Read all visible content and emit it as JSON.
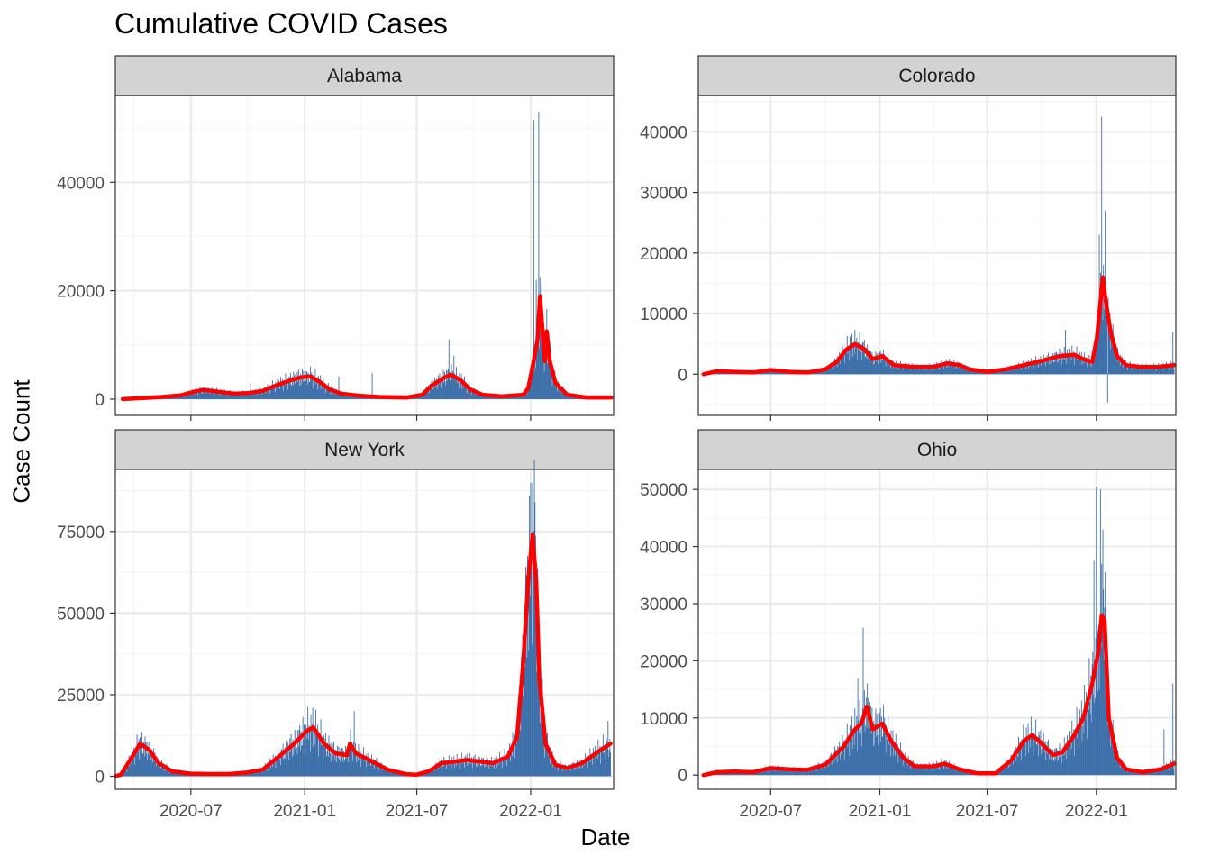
{
  "title": "Cumulative COVID Cases",
  "colors": {
    "bar": "#3c6fa9",
    "smooth": "#ff0000",
    "strip_fill": "#d3d3d3",
    "strip_border": "#333333",
    "grid_major": "#ebebeb",
    "grid_minor": "#f5f5f5",
    "panel_border": "#333333"
  },
  "chart_data": {
    "type": "bar",
    "layout": "facet-grid-2x2",
    "title": "Cumulative COVID Cases",
    "xlabel": "Date",
    "ylabel": "Case Count",
    "x_ticks": [
      "2020-07",
      "2021-01",
      "2021-07",
      "2022-01"
    ],
    "xlim": [
      "2020-03-01",
      "2022-05-15"
    ],
    "grid": true,
    "legend": "none",
    "series_types": {
      "bars": "daily cases (bar)",
      "line": "7-day smoothed (line)"
    },
    "facets": [
      {
        "name": "Alabama",
        "ylim": [
          -3000,
          56000
        ],
        "y_ticks": [
          0,
          20000,
          40000
        ],
        "smooth": [
          [
            "2020-03-13",
            0
          ],
          [
            "2020-04-15",
            200
          ],
          [
            "2020-05-15",
            400
          ],
          [
            "2020-06-15",
            700
          ],
          [
            "2020-07-01",
            1200
          ],
          [
            "2020-07-20",
            1700
          ],
          [
            "2020-08-05",
            1500
          ],
          [
            "2020-08-25",
            1200
          ],
          [
            "2020-09-10",
            1000
          ],
          [
            "2020-10-01",
            1100
          ],
          [
            "2020-10-25",
            1500
          ],
          [
            "2020-11-15",
            2500
          ],
          [
            "2020-12-10",
            3500
          ],
          [
            "2020-12-25",
            4000
          ],
          [
            "2021-01-10",
            4200
          ],
          [
            "2021-01-25",
            3200
          ],
          [
            "2021-02-10",
            1800
          ],
          [
            "2021-03-01",
            1000
          ],
          [
            "2021-04-01",
            600
          ],
          [
            "2021-05-01",
            400
          ],
          [
            "2021-06-15",
            300
          ],
          [
            "2021-07-10",
            800
          ],
          [
            "2021-07-25",
            2500
          ],
          [
            "2021-08-15",
            4000
          ],
          [
            "2021-08-25",
            4500
          ],
          [
            "2021-09-10",
            3500
          ],
          [
            "2021-09-25",
            1800
          ],
          [
            "2021-10-15",
            800
          ],
          [
            "2021-11-15",
            500
          ],
          [
            "2021-12-20",
            800
          ],
          [
            "2021-12-28",
            2000
          ],
          [
            "2022-01-05",
            6500
          ],
          [
            "2022-01-12",
            11000
          ],
          [
            "2022-01-16",
            19000
          ],
          [
            "2022-01-20",
            13000
          ],
          [
            "2022-01-24",
            7000
          ],
          [
            "2022-01-27",
            12500
          ],
          [
            "2022-02-01",
            7000
          ],
          [
            "2022-02-10",
            3000
          ],
          [
            "2022-03-01",
            800
          ],
          [
            "2022-04-01",
            300
          ],
          [
            "2022-05-11",
            300
          ]
        ],
        "spikes": [
          [
            "2022-01-06",
            51500
          ],
          [
            "2022-01-14",
            53000
          ],
          [
            "2022-01-10",
            22000
          ],
          [
            "2021-08-22",
            11000
          ],
          [
            "2021-08-30",
            8000
          ],
          [
            "2021-02-25",
            4200
          ],
          [
            "2021-04-20",
            4800
          ],
          [
            "2021-01-05",
            5000
          ],
          [
            "2020-11-20",
            3500
          ],
          [
            "2020-10-05",
            3000
          ]
        ]
      },
      {
        "name": "Colorado",
        "ylim": [
          -6800,
          46000
        ],
        "y_ticks": [
          0,
          10000,
          20000,
          30000,
          40000
        ],
        "smooth": [
          [
            "2020-03-10",
            0
          ],
          [
            "2020-04-01",
            500
          ],
          [
            "2020-05-01",
            400
          ],
          [
            "2020-06-01",
            300
          ],
          [
            "2020-07-01",
            700
          ],
          [
            "2020-08-01",
            400
          ],
          [
            "2020-09-01",
            300
          ],
          [
            "2020-10-01",
            800
          ],
          [
            "2020-10-20",
            2000
          ],
          [
            "2020-11-05",
            4000
          ],
          [
            "2020-11-20",
            5000
          ],
          [
            "2020-12-05",
            4200
          ],
          [
            "2020-12-20",
            2500
          ],
          [
            "2021-01-05",
            3000
          ],
          [
            "2021-01-25",
            1500
          ],
          [
            "2021-03-01",
            1200
          ],
          [
            "2021-04-01",
            1200
          ],
          [
            "2021-04-25",
            1800
          ],
          [
            "2021-05-15",
            1500
          ],
          [
            "2021-06-01",
            800
          ],
          [
            "2021-07-01",
            400
          ],
          [
            "2021-08-01",
            800
          ],
          [
            "2021-09-01",
            1500
          ],
          [
            "2021-10-01",
            2200
          ],
          [
            "2021-11-01",
            3000
          ],
          [
            "2021-11-25",
            3200
          ],
          [
            "2021-12-10",
            2500
          ],
          [
            "2021-12-25",
            2000
          ],
          [
            "2022-01-02",
            6000
          ],
          [
            "2022-01-08",
            12000
          ],
          [
            "2022-01-12",
            16000
          ],
          [
            "2022-01-17",
            12000
          ],
          [
            "2022-01-25",
            7000
          ],
          [
            "2022-02-05",
            3000
          ],
          [
            "2022-02-20",
            1500
          ],
          [
            "2022-03-15",
            1200
          ],
          [
            "2022-04-15",
            1200
          ],
          [
            "2022-05-12",
            1500
          ]
        ],
        "spikes": [
          [
            "2022-01-10",
            42500
          ],
          [
            "2022-01-16",
            27000
          ],
          [
            "2022-01-06",
            23000
          ],
          [
            "2022-01-20",
            -4700
          ],
          [
            "2021-11-10",
            7300
          ],
          [
            "2022-05-10",
            7000
          ],
          [
            "2020-11-12",
            6200
          ]
        ]
      },
      {
        "name": "New York",
        "ylim": [
          -4000,
          94000
        ],
        "y_ticks": [
          0,
          25000,
          50000,
          75000
        ],
        "smooth": [
          [
            "2020-03-01",
            0
          ],
          [
            "2020-03-10",
            500
          ],
          [
            "2020-03-25",
            5000
          ],
          [
            "2020-04-10",
            10000
          ],
          [
            "2020-04-25",
            8000
          ],
          [
            "2020-05-10",
            4000
          ],
          [
            "2020-06-01",
            1500
          ],
          [
            "2020-07-01",
            800
          ],
          [
            "2020-08-01",
            700
          ],
          [
            "2020-09-01",
            700
          ],
          [
            "2020-10-01",
            1200
          ],
          [
            "2020-10-25",
            2000
          ],
          [
            "2020-11-20",
            6000
          ],
          [
            "2020-12-15",
            10000
          ],
          [
            "2021-01-05",
            14000
          ],
          [
            "2021-01-15",
            15000
          ],
          [
            "2021-02-01",
            10000
          ],
          [
            "2021-02-20",
            7000
          ],
          [
            "2021-03-10",
            6500
          ],
          [
            "2021-03-15",
            10000
          ],
          [
            "2021-03-25",
            7000
          ],
          [
            "2021-04-15",
            5000
          ],
          [
            "2021-05-15",
            2000
          ],
          [
            "2021-06-15",
            600
          ],
          [
            "2021-07-01",
            500
          ],
          [
            "2021-07-20",
            1500
          ],
          [
            "2021-08-10",
            4000
          ],
          [
            "2021-09-01",
            4500
          ],
          [
            "2021-09-20",
            5000
          ],
          [
            "2021-10-10",
            4500
          ],
          [
            "2021-11-01",
            4000
          ],
          [
            "2021-11-25",
            6000
          ],
          [
            "2021-12-10",
            12000
          ],
          [
            "2021-12-20",
            35000
          ],
          [
            "2021-12-28",
            60000
          ],
          [
            "2022-01-04",
            74000
          ],
          [
            "2022-01-10",
            60000
          ],
          [
            "2022-01-15",
            30000
          ],
          [
            "2022-01-25",
            10000
          ],
          [
            "2022-02-10",
            3500
          ],
          [
            "2022-03-01",
            2500
          ],
          [
            "2022-03-25",
            4000
          ],
          [
            "2022-04-20",
            7500
          ],
          [
            "2022-05-10",
            10000
          ]
        ],
        "spikes": [
          [
            "2021-12-30",
            86000
          ],
          [
            "2022-01-04",
            90000
          ],
          [
            "2022-01-08",
            84000
          ],
          [
            "2021-03-22",
            20000
          ],
          [
            "2020-04-08",
            11500
          ],
          [
            "2022-05-06",
            17000
          ]
        ]
      },
      {
        "name": "Ohio",
        "ylim": [
          -2500,
          53500
        ],
        "y_ticks": [
          0,
          10000,
          20000,
          30000,
          40000,
          50000
        ],
        "smooth": [
          [
            "2020-03-10",
            0
          ],
          [
            "2020-04-01",
            500
          ],
          [
            "2020-05-01",
            600
          ],
          [
            "2020-06-01",
            500
          ],
          [
            "2020-07-01",
            1200
          ],
          [
            "2020-08-01",
            1000
          ],
          [
            "2020-09-01",
            900
          ],
          [
            "2020-10-01",
            1800
          ],
          [
            "2020-11-01",
            5000
          ],
          [
            "2020-11-20",
            8000
          ],
          [
            "2020-12-01",
            9000
          ],
          [
            "2020-12-10",
            12000
          ],
          [
            "2020-12-20",
            8000
          ],
          [
            "2021-01-05",
            9000
          ],
          [
            "2021-01-20",
            6000
          ],
          [
            "2021-02-10",
            3000
          ],
          [
            "2021-03-01",
            1500
          ],
          [
            "2021-04-01",
            1500
          ],
          [
            "2021-04-20",
            2000
          ],
          [
            "2021-05-15",
            1000
          ],
          [
            "2021-06-15",
            300
          ],
          [
            "2021-07-15",
            300
          ],
          [
            "2021-08-10",
            2500
          ],
          [
            "2021-09-01",
            6000
          ],
          [
            "2021-09-15",
            7000
          ],
          [
            "2021-10-01",
            5500
          ],
          [
            "2021-10-20",
            3500
          ],
          [
            "2021-11-05",
            4000
          ],
          [
            "2021-11-25",
            7000
          ],
          [
            "2021-12-10",
            10000
          ],
          [
            "2021-12-25",
            16000
          ],
          [
            "2022-01-05",
            22000
          ],
          [
            "2022-01-10",
            28000
          ],
          [
            "2022-01-15",
            27000
          ],
          [
            "2022-01-22",
            10000
          ],
          [
            "2022-02-05",
            3000
          ],
          [
            "2022-02-20",
            1000
          ],
          [
            "2022-03-20",
            500
          ],
          [
            "2022-04-20",
            1000
          ],
          [
            "2022-05-12",
            2000
          ]
        ],
        "spikes": [
          [
            "2022-01-01",
            50500
          ],
          [
            "2022-01-08",
            50000
          ],
          [
            "2022-01-12",
            43000
          ],
          [
            "2021-12-28",
            37500
          ],
          [
            "2020-11-25",
            17000
          ],
          [
            "2020-12-04",
            25800
          ],
          [
            "2022-05-10",
            16000
          ],
          [
            "2022-05-05",
            11000
          ],
          [
            "2022-04-25",
            8000
          ]
        ]
      }
    ]
  }
}
